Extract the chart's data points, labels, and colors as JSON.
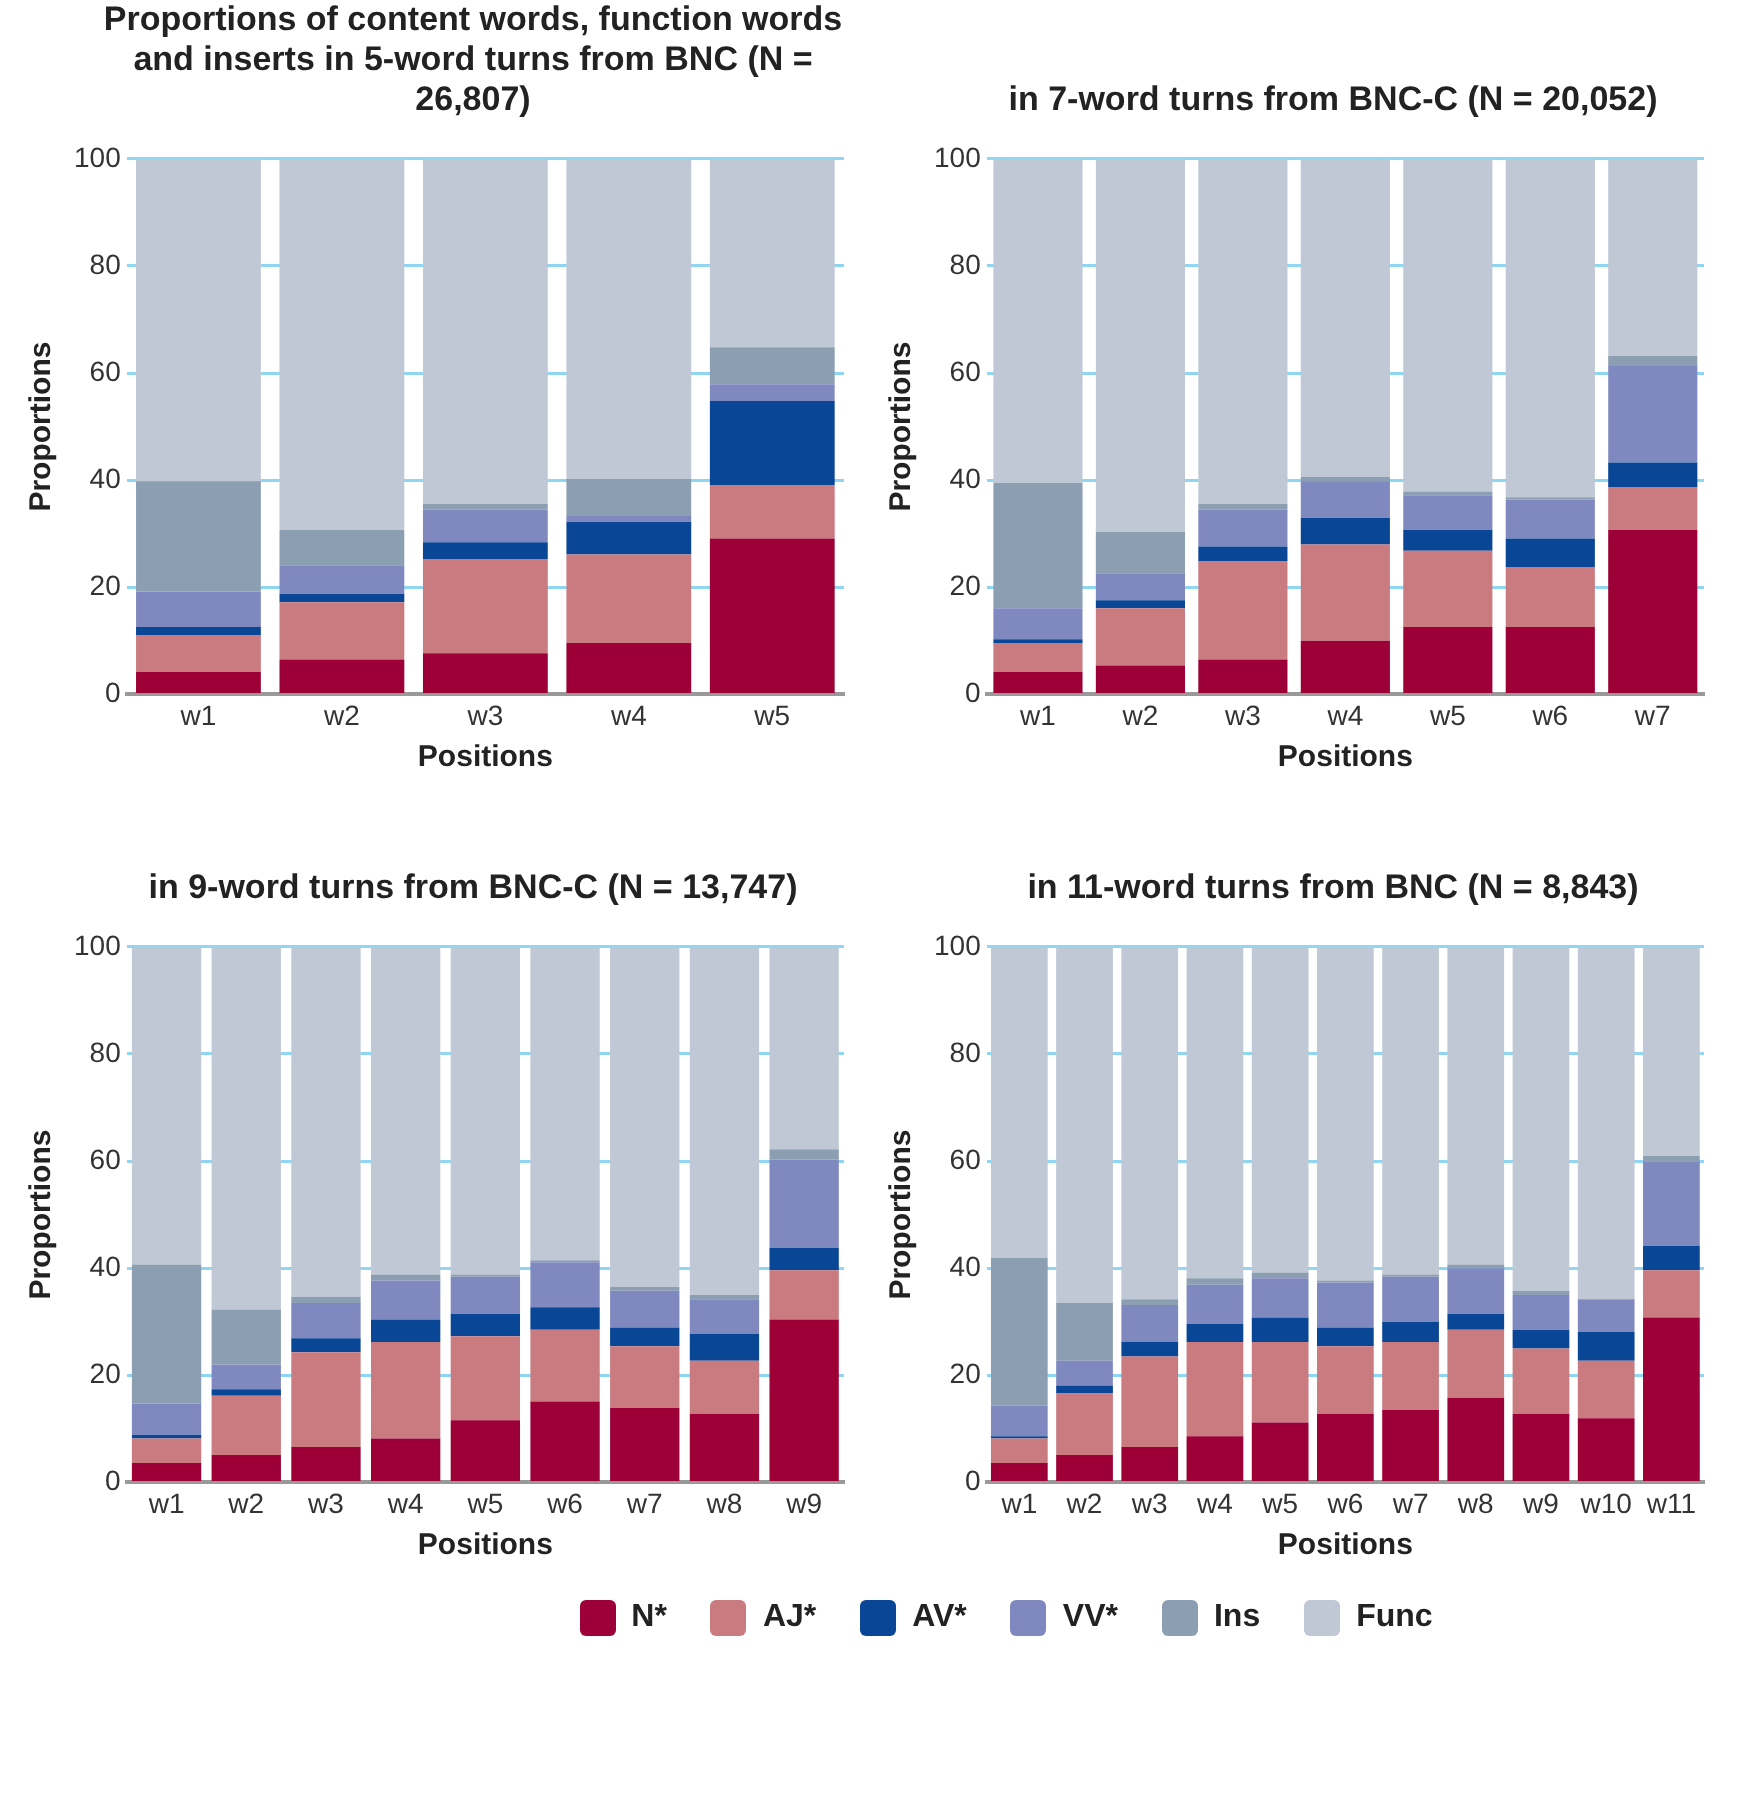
{
  "chart_data": [
    {
      "type": "bar",
      "title": "Proportions of content words, function words and inserts in 5-word turns from BNC (N = 26,807)",
      "xlabel": "Positions",
      "ylabel": "Proportions",
      "categories": [
        "w1",
        "w2",
        "w3",
        "w4",
        "w5"
      ],
      "stacked": true,
      "ylim": [
        0,
        100
      ],
      "yticks": [
        0,
        20,
        40,
        60,
        80,
        100
      ],
      "grid": "y",
      "legend": "bottom",
      "series": [
        {
          "name": "N*",
          "color": "#9c0036",
          "values": [
            4.2,
            6.5,
            7.7,
            9.6,
            29.1
          ]
        },
        {
          "name": "AJ*",
          "color": "#c97b80",
          "values": [
            6.9,
            10.7,
            17.6,
            16.5,
            10.0
          ]
        },
        {
          "name": "AV*",
          "color": "#0a4696",
          "values": [
            1.5,
            1.6,
            3.1,
            6.1,
            15.7
          ]
        },
        {
          "name": "VV*",
          "color": "#7f89bf",
          "values": [
            6.6,
            5.3,
            6.1,
            1.1,
            3.1
          ]
        },
        {
          "name": "Ins",
          "color": "#8c9fb2",
          "values": [
            20.6,
            6.6,
            1.1,
            6.9,
            6.9
          ]
        },
        {
          "name": "Func",
          "color": "#bfc8d4",
          "values": [
            60.2,
            69.3,
            64.4,
            59.8,
            35.2
          ]
        }
      ]
    },
    {
      "type": "bar",
      "title": "in 7-word turns from BNC-C (N = 20,052)",
      "xlabel": "Positions",
      "ylabel": "Proportions",
      "categories": [
        "w1",
        "w2",
        "w3",
        "w4",
        "w5",
        "w6",
        "w7"
      ],
      "stacked": true,
      "ylim": [
        0,
        100
      ],
      "yticks": [
        0,
        20,
        40,
        60,
        80,
        100
      ],
      "grid": "y",
      "legend": false,
      "series": [
        {
          "color": "#9c0036",
          "values": [
            4.2,
            5.4,
            6.5,
            10.0,
            12.6,
            12.6,
            30.7
          ]
        },
        {
          "color": "#c97b80",
          "values": [
            5.4,
            10.7,
            18.4,
            18.0,
            14.2,
            11.2,
            8.0
          ]
        },
        {
          "color": "#0a4696",
          "values": [
            0.7,
            1.5,
            2.7,
            5.0,
            3.9,
            5.3,
            4.6
          ]
        },
        {
          "color": "#7f89bf",
          "values": [
            5.8,
            5.0,
            6.9,
            6.8,
            6.5,
            7.3,
            18.0
          ]
        },
        {
          "color": "#8c9fb2",
          "values": [
            23.4,
            7.7,
            1.1,
            0.8,
            0.7,
            0.4,
            1.9
          ]
        },
        {
          "color": "#bfc8d4",
          "values": [
            60.5,
            69.7,
            64.4,
            59.4,
            62.1,
            63.2,
            36.8
          ]
        }
      ]
    },
    {
      "type": "bar",
      "title": "in 9-word turns from BNC-C (N = 13,747)",
      "xlabel": "Positions",
      "ylabel": "Proportions",
      "categories": [
        "w1",
        "w2",
        "w3",
        "w4",
        "w5",
        "w6",
        "w7",
        "w8",
        "w9"
      ],
      "stacked": true,
      "ylim": [
        0,
        100
      ],
      "yticks": [
        0,
        20,
        40,
        60,
        80,
        100
      ],
      "grid": "y",
      "legend": false,
      "series": [
        {
          "color": "#9c0036",
          "values": [
            3.6,
            5.1,
            6.6,
            8.2,
            11.6,
            15.1,
            13.9,
            12.8,
            30.4
          ]
        },
        {
          "color": "#c97b80",
          "values": [
            4.6,
            11.1,
            17.7,
            18.0,
            15.7,
            13.4,
            11.5,
            9.9,
            9.2
          ]
        },
        {
          "color": "#0a4696",
          "values": [
            0.7,
            1.2,
            2.6,
            4.2,
            4.2,
            4.2,
            3.5,
            5.0,
            4.2
          ]
        },
        {
          "color": "#7f89bf",
          "values": [
            5.8,
            4.6,
            6.6,
            7.3,
            6.9,
            8.4,
            6.9,
            6.5,
            16.5
          ]
        },
        {
          "color": "#8c9fb2",
          "values": [
            26.0,
            10.3,
            1.1,
            1.1,
            0.4,
            0.4,
            0.7,
            0.8,
            1.9
          ]
        },
        {
          "color": "#bfc8d4",
          "values": [
            59.3,
            67.7,
            65.4,
            61.2,
            61.2,
            58.5,
            63.5,
            65.0,
            37.8
          ]
        }
      ]
    },
    {
      "type": "bar",
      "title": "in 11-word turns from BNC (N = 8,843)",
      "xlabel": "Positions",
      "ylabel": "Proportions",
      "categories": [
        "w1",
        "w2",
        "w3",
        "w4",
        "w5",
        "w6",
        "w7",
        "w8",
        "w9",
        "w10",
        "w11"
      ],
      "stacked": true,
      "ylim": [
        0,
        100
      ],
      "yticks": [
        0,
        20,
        40,
        60,
        80,
        100
      ],
      "grid": "y",
      "series": [
        {
          "color": "#9c0036",
          "values": [
            3.6,
            5.1,
            6.6,
            8.6,
            11.2,
            12.8,
            13.5,
            15.8,
            12.8,
            12.0,
            30.8
          ]
        },
        {
          "color": "#c97b80",
          "values": [
            4.6,
            11.5,
            16.9,
            17.6,
            15.0,
            12.6,
            12.7,
            12.7,
            12.2,
            10.7,
            8.8
          ]
        },
        {
          "color": "#0a4696",
          "values": [
            0.4,
            1.5,
            2.7,
            3.4,
            4.6,
            3.5,
            3.8,
            3.0,
            3.5,
            5.4,
            4.6
          ]
        },
        {
          "color": "#7f89bf",
          "values": [
            5.7,
            4.6,
            6.9,
            7.3,
            7.3,
            8.4,
            8.4,
            8.5,
            6.5,
            6.1,
            15.7
          ]
        },
        {
          "color": "#8c9fb2",
          "values": [
            27.6,
            10.8,
            1.1,
            1.2,
            1.1,
            0.4,
            0.4,
            0.7,
            0.8,
            0.0,
            1.1
          ]
        },
        {
          "color": "#bfc8d4",
          "values": [
            58.1,
            66.5,
            65.8,
            61.9,
            60.8,
            62.3,
            61.2,
            59.3,
            64.2,
            65.8,
            39.0
          ]
        }
      ]
    }
  ]
}
